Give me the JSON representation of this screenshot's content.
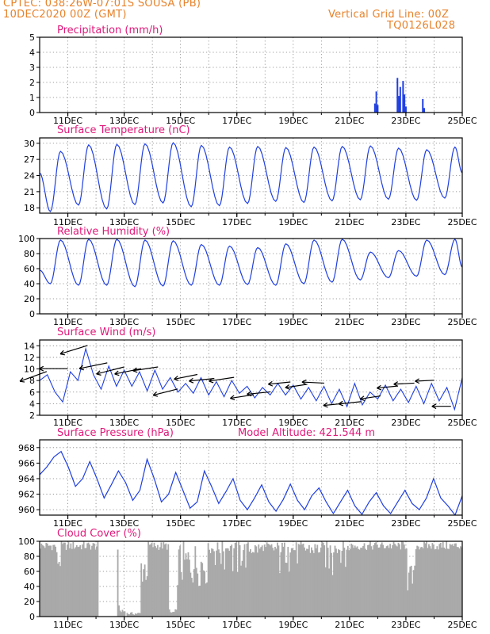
{
  "header": {
    "left_line1": "CPTEC:   038:26W-07:01S   SOUSA (PB)",
    "left_line2": "10DEC2020 00Z (GMT)",
    "right_line1": "Vertical Grid Line: 00Z",
    "right_line2": "TQ0126L028"
  },
  "colors": {
    "header": "#e8822a",
    "title": "#e0197a",
    "series": "#1f3fe0",
    "cloud": "#a9a9a9",
    "grid": "#808080",
    "wind_arrow": "#000000"
  },
  "x_axis": {
    "ticks": [
      "11DEC",
      "13DEC",
      "15DEC",
      "17DEC",
      "19DEC",
      "21DEC",
      "23DEC",
      "25DEC"
    ],
    "tick_days": [
      1,
      3,
      5,
      7,
      9,
      11,
      13,
      15
    ],
    "range_days": [
      0,
      15
    ]
  },
  "chart_data": [
    {
      "id": "precip",
      "type": "bar",
      "title": "Precipitation (mm/h)",
      "ylim": [
        0,
        5
      ],
      "yticks": [
        0,
        1,
        2,
        3,
        4,
        5
      ],
      "points": [
        {
          "x": 11.9,
          "y": 0.6
        },
        {
          "x": 11.95,
          "y": 1.4
        },
        {
          "x": 12.0,
          "y": 0.5
        },
        {
          "x": 12.7,
          "y": 2.3
        },
        {
          "x": 12.75,
          "y": 1.1
        },
        {
          "x": 12.8,
          "y": 1.7
        },
        {
          "x": 12.9,
          "y": 2.1
        },
        {
          "x": 12.95,
          "y": 1.2
        },
        {
          "x": 13.0,
          "y": 0.4
        },
        {
          "x": 13.6,
          "y": 0.9
        },
        {
          "x": 13.65,
          "y": 0.3
        }
      ]
    },
    {
      "id": "temp",
      "type": "line",
      "title": "Surface Temperature (nC)",
      "ylim": [
        17,
        31
      ],
      "yticks": [
        18,
        21,
        24,
        27,
        30
      ],
      "daily_min": [
        17.3,
        18.5,
        17.8,
        18.6,
        18.9,
        18.2,
        18.4,
        18.8,
        19.2,
        19.0,
        19.3,
        19.5,
        19.6,
        19.4,
        19.8,
        19.5
      ],
      "daily_max": [
        28.5,
        29.7,
        29.8,
        29.9,
        30.1,
        29.6,
        29.3,
        29.4,
        29.2,
        29.3,
        29.4,
        29.5,
        29.1,
        28.8,
        29.3
      ],
      "start": 24.5,
      "end": 24.5
    },
    {
      "id": "rh",
      "type": "line",
      "title": "Relative Humidity (%)",
      "ylim": [
        0,
        100
      ],
      "yticks": [
        0,
        20,
        40,
        60,
        80,
        100
      ],
      "daily_min": [
        40,
        38,
        38,
        36,
        37,
        38,
        38,
        39,
        38,
        40,
        42,
        45,
        48,
        50,
        52,
        44
      ],
      "daily_max": [
        98,
        99,
        99,
        98,
        97,
        92,
        90,
        88,
        93,
        98,
        99,
        82,
        84,
        98,
        99
      ],
      "start": 58,
      "end": 62
    },
    {
      "id": "wind",
      "type": "line",
      "title": "Surface Wind (m/s)",
      "ylim": [
        2,
        15
      ],
      "yticks": [
        2,
        4,
        6,
        8,
        10,
        12,
        14
      ],
      "speed": [
        8.0,
        9.0,
        6.0,
        4.3,
        9.5,
        8.0,
        13.5,
        9.0,
        6.5,
        10.5,
        7.0,
        9.8,
        7.0,
        9.5,
        6.2,
        9.8,
        6.5,
        8.5,
        6.0,
        7.5,
        5.8,
        8.5,
        5.5,
        7.8,
        5.2,
        8.0,
        5.8,
        7.0,
        5.0,
        6.8,
        5.5,
        7.5,
        5.5,
        7.2,
        4.8,
        6.8,
        4.5,
        7.0,
        4.0,
        6.5,
        3.5,
        7.5,
        3.8,
        6.0,
        4.8,
        7.2,
        4.5,
        6.5,
        4.2,
        7.0,
        4.0,
        7.5,
        4.5,
        6.8,
        3.0,
        8.5
      ],
      "arrows": [
        {
          "x": 0.25,
          "len": 0.9,
          "dir": -0.35
        },
        {
          "x": 1.0,
          "len": 0.9,
          "dir": 0.0
        },
        {
          "x": 1.7,
          "len": 0.9,
          "dir": -0.3
        },
        {
          "x": 2.4,
          "len": 0.9,
          "dir": -0.2
        },
        {
          "x": 3.0,
          "len": 0.9,
          "dir": -0.25
        },
        {
          "x": 3.6,
          "len": 0.85,
          "dir": -0.2
        },
        {
          "x": 4.2,
          "len": 0.8,
          "dir": -0.15
        },
        {
          "x": 4.9,
          "len": 0.8,
          "dir": -0.25
        },
        {
          "x": 5.6,
          "len": 0.75,
          "dir": -0.2
        },
        {
          "x": 6.2,
          "len": 0.8,
          "dir": -0.1
        },
        {
          "x": 6.9,
          "len": 0.8,
          "dir": -0.15
        },
        {
          "x": 7.6,
          "len": 0.75,
          "dir": -0.15
        },
        {
          "x": 8.2,
          "len": 0.75,
          "dir": -0.1
        },
        {
          "x": 8.9,
          "len": 0.7,
          "dir": -0.1
        },
        {
          "x": 9.5,
          "len": 0.7,
          "dir": -0.15
        },
        {
          "x": 10.1,
          "len": 0.7,
          "dir": 0.05
        },
        {
          "x": 10.8,
          "len": 0.65,
          "dir": -0.1
        },
        {
          "x": 11.4,
          "len": 0.7,
          "dir": -0.1
        },
        {
          "x": 12.1,
          "len": 0.65,
          "dir": -0.15
        },
        {
          "x": 12.7,
          "len": 0.65,
          "dir": -0.1
        },
        {
          "x": 13.3,
          "len": 0.65,
          "dir": -0.05
        },
        {
          "x": 14.0,
          "len": 0.6,
          "dir": -0.05
        },
        {
          "x": 14.6,
          "len": 0.6,
          "dir": 0.0
        }
      ]
    },
    {
      "id": "pressure",
      "type": "line",
      "title": "Surface Pressure (hPa)",
      "annotation": "Model Altitude: 421.544 m",
      "ylim": [
        959.3,
        969
      ],
      "yticks": [
        960,
        962,
        964,
        966,
        968
      ],
      "values": [
        964.5,
        965.5,
        966.8,
        967.5,
        965.5,
        963.0,
        964.0,
        966.2,
        964.0,
        961.5,
        963.2,
        965.0,
        963.5,
        961.2,
        962.5,
        966.5,
        964.0,
        961.0,
        962.0,
        964.8,
        962.5,
        960.2,
        961.0,
        965.0,
        963.0,
        960.8,
        962.3,
        964.0,
        961.2,
        960.0,
        961.5,
        963.2,
        961.0,
        959.8,
        961.3,
        963.3,
        961.2,
        960.0,
        961.8,
        962.8,
        961.0,
        959.5,
        961.0,
        962.5,
        960.5,
        959.4,
        961.0,
        962.2,
        960.5,
        959.5,
        961.0,
        962.5,
        960.8,
        960.0,
        961.5,
        964.0,
        961.5,
        960.5,
        959.3,
        961.8
      ]
    },
    {
      "id": "cloud",
      "type": "bar",
      "title": "Cloud Cover (%)",
      "ylim": [
        0,
        100
      ],
      "yticks": [
        0,
        20,
        40,
        60,
        80,
        100
      ]
    }
  ]
}
